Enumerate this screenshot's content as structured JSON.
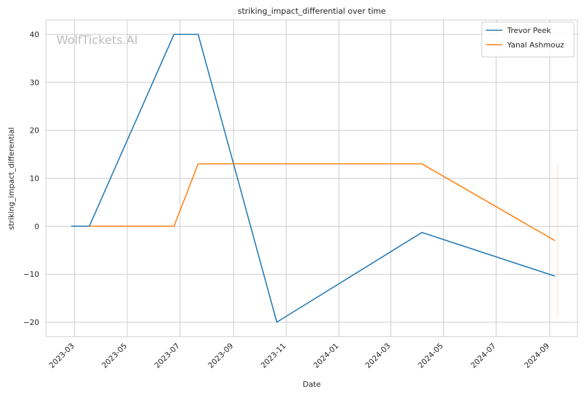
{
  "chart_data": {
    "type": "line",
    "title": "striking_impact_differential over time",
    "xlabel": "Date",
    "ylabel": "striking_impact_differential",
    "watermark": "WolfTickets.AI",
    "xlim": [
      "2023-01-27",
      "2024-10-03"
    ],
    "ylim": [
      -23,
      43
    ],
    "x_ticks": [
      "2023-03",
      "2023-05",
      "2023-07",
      "2023-09",
      "2023-11",
      "2024-01",
      "2024-03",
      "2024-05",
      "2024-07",
      "2024-09"
    ],
    "y_ticks": [
      -20,
      -10,
      0,
      10,
      20,
      30,
      40
    ],
    "y_tick_labels": [
      "−20",
      "−10",
      "0",
      "10",
      "20",
      "30",
      "40"
    ],
    "grid": true,
    "legend_position": "top-right",
    "series": [
      {
        "name": "Trevor Peek",
        "color": "#1f77b4",
        "points": [
          {
            "x": "2023-02-25",
            "y": 0
          },
          {
            "x": "2023-03-18",
            "y": 0
          },
          {
            "x": "2023-06-24",
            "y": 40
          },
          {
            "x": "2023-07-22",
            "y": 40
          },
          {
            "x": "2023-10-21",
            "y": -20
          },
          {
            "x": "2024-04-06",
            "y": -1.3
          },
          {
            "x": "2024-09-07",
            "y": -10.4
          }
        ]
      },
      {
        "name": "Yanal Ashmouz",
        "color": "#ff7f0e",
        "points": [
          {
            "x": "2023-03-18",
            "y": 0
          },
          {
            "x": "2023-06-24",
            "y": 0
          },
          {
            "x": "2023-07-22",
            "y": 13
          },
          {
            "x": "2024-04-06",
            "y": 13
          },
          {
            "x": "2024-09-07",
            "y": -3
          }
        ]
      }
    ],
    "reference_line": {
      "x": "2024-09-10",
      "y_range": [
        -19,
        13
      ],
      "color": "#ff7f0e"
    }
  }
}
